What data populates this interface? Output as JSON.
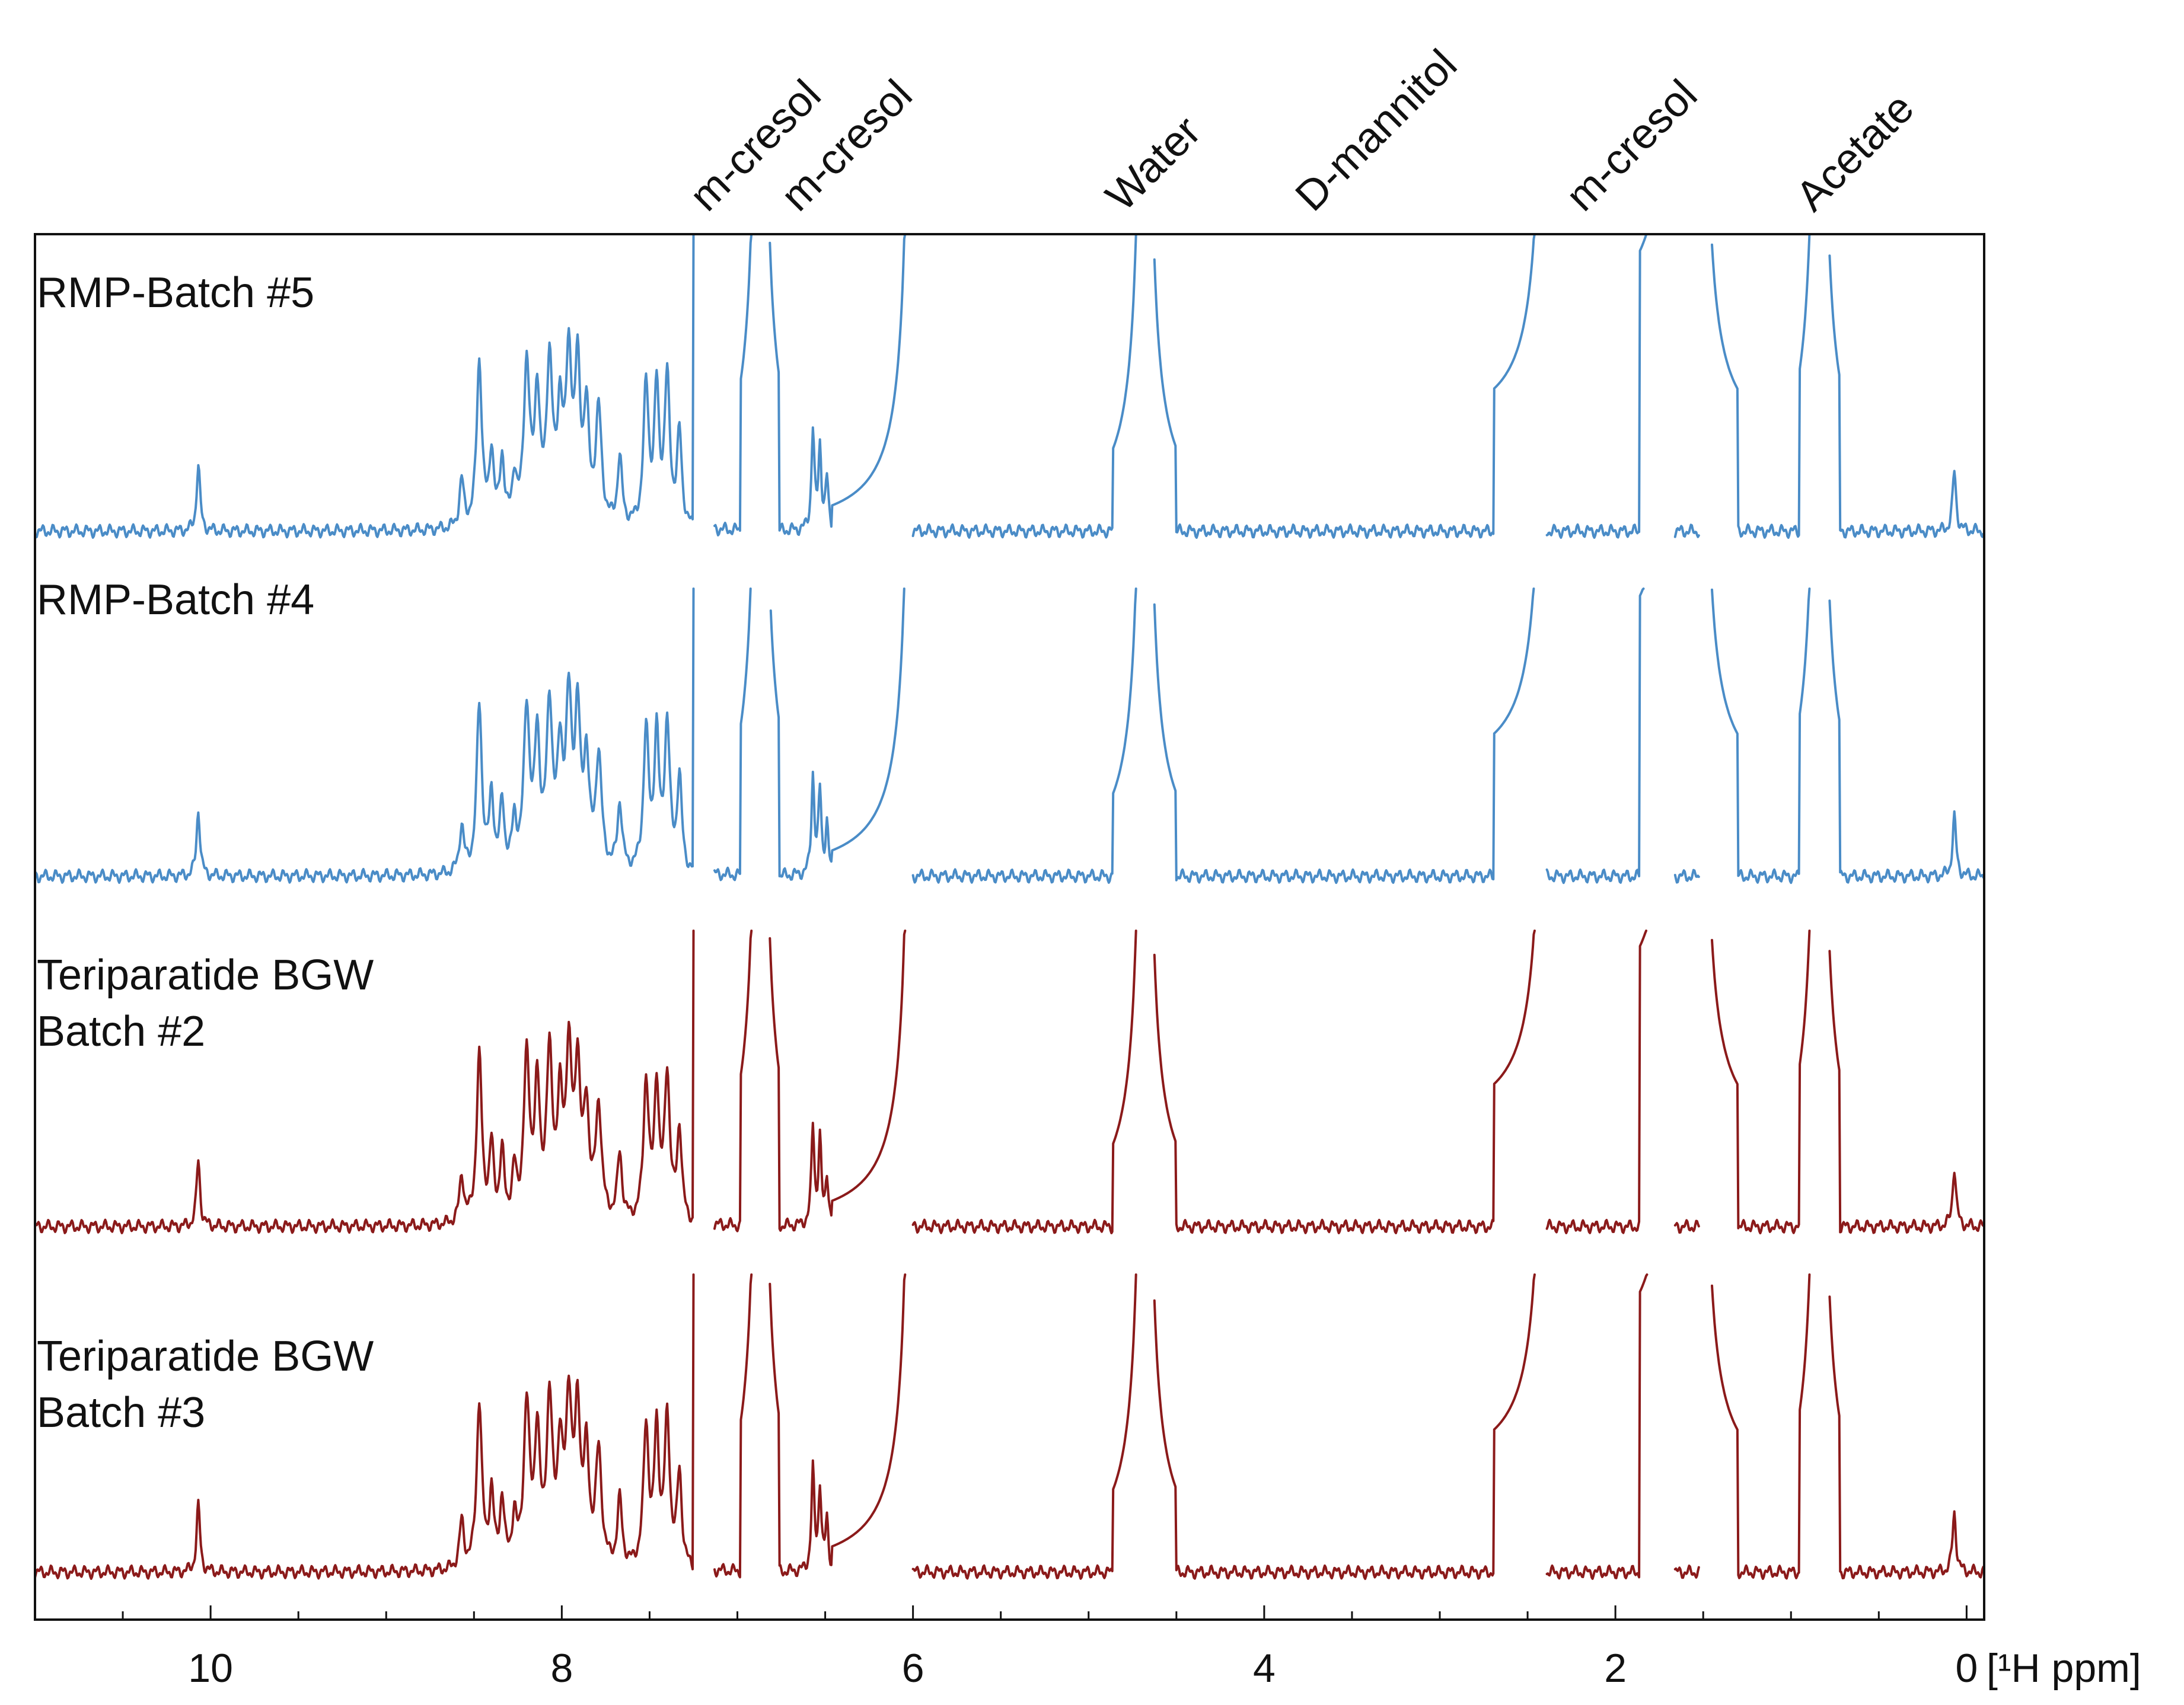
{
  "chart_data": {
    "type": "line",
    "title": "",
    "xlabel": "[¹H ppm]",
    "ylabel": "",
    "x_axis": {
      "reversed": true,
      "range_ppm": [
        11.0,
        -0.1
      ],
      "major_ticks": [
        10,
        8,
        6,
        4,
        2,
        0
      ],
      "minor_tick_step": 0.5,
      "unit_label": "[¹H ppm]"
    },
    "grid": false,
    "annotations": [
      {
        "text": "m-cresol",
        "ppm": 7.17
      },
      {
        "text": "m-cresol",
        "ppm": 6.65
      },
      {
        "text": "Water",
        "ppm": 4.8
      },
      {
        "text": "D-mannitol",
        "ppm": 3.72
      },
      {
        "text": "m-cresol",
        "ppm": 2.18
      },
      {
        "text": "Acetate",
        "ppm": 0.87
      }
    ],
    "colors": {
      "blue": "#4a8cc7",
      "red": "#8b1a1a",
      "frame": "#111111"
    },
    "traces": [
      {
        "label_lines": [
          "RMP-Batch #5"
        ],
        "color": "#4a8cc7"
      },
      {
        "label_lines": [
          "RMP-Batch #4"
        ],
        "color": "#4a8cc7"
      },
      {
        "label_lines": [
          "Teriparatide BGW",
          "Batch #2"
        ],
        "color": "#8b1a1a"
      },
      {
        "label_lines": [
          "Teriparatide BGW",
          "Batch #3"
        ],
        "color": "#8b1a1a"
      }
    ],
    "peaks_ppm": [
      {
        "ppm": 10.07,
        "height": 0.2,
        "width": 0.012
      },
      {
        "ppm": 8.57,
        "height": 0.14,
        "width": 0.015
      },
      {
        "ppm": 8.47,
        "height": 0.5,
        "width": 0.018
      },
      {
        "ppm": 8.4,
        "height": 0.22,
        "width": 0.015
      },
      {
        "ppm": 8.34,
        "height": 0.2,
        "width": 0.015
      },
      {
        "ppm": 8.27,
        "height": 0.14,
        "width": 0.015
      },
      {
        "ppm": 8.2,
        "height": 0.48,
        "width": 0.02
      },
      {
        "ppm": 8.14,
        "height": 0.38,
        "width": 0.018
      },
      {
        "ppm": 8.07,
        "height": 0.48,
        "width": 0.02
      },
      {
        "ppm": 8.01,
        "height": 0.32,
        "width": 0.018
      },
      {
        "ppm": 7.96,
        "height": 0.48,
        "width": 0.02
      },
      {
        "ppm": 7.91,
        "height": 0.44,
        "width": 0.018
      },
      {
        "ppm": 7.86,
        "height": 0.32,
        "width": 0.018
      },
      {
        "ppm": 7.79,
        "height": 0.34,
        "width": 0.02
      },
      {
        "ppm": 7.67,
        "height": 0.2,
        "width": 0.016
      },
      {
        "ppm": 7.52,
        "height": 0.42,
        "width": 0.018
      },
      {
        "ppm": 7.46,
        "height": 0.4,
        "width": 0.016
      },
      {
        "ppm": 7.4,
        "height": 0.44,
        "width": 0.018
      },
      {
        "ppm": 7.33,
        "height": 0.28,
        "width": 0.016
      },
      {
        "ppm": 6.57,
        "height": 0.3,
        "width": 0.01
      },
      {
        "ppm": 6.53,
        "height": 0.25,
        "width": 0.01
      },
      {
        "ppm": 6.49,
        "height": 0.15,
        "width": 0.01
      },
      {
        "ppm": 0.07,
        "height": 0.18,
        "width": 0.012
      }
    ],
    "offscale_regions_ppm": [
      {
        "left": 7.25,
        "right": 7.13,
        "top_ppm": 7.18,
        "trough_height": 0.55
      },
      {
        "left": 6.98,
        "right": 6.76,
        "top_ppm": 6.87,
        "trough_height": 0.05
      },
      {
        "left": 6.46,
        "right": 6.0,
        "top_ppm": 6.0,
        "trough_height": -0.02
      },
      {
        "left": 4.86,
        "right": 4.5,
        "top_ppm": 4.68,
        "trough_height": 0.0
      },
      {
        "left": 2.69,
        "right": 2.39,
        "top_ppm": 2.39,
        "trough_height": 0.28
      },
      {
        "left": 1.86,
        "right": 1.66,
        "top_ppm": 1.66,
        "trough_height": 0.62
      },
      {
        "left": 1.52,
        "right": 1.3,
        "top_ppm": 1.52,
        "trough_height": 0.22
      },
      {
        "left": 0.95,
        "right": 0.72,
        "top_ppm": 0.84,
        "trough_height": 0.08
      }
    ]
  }
}
